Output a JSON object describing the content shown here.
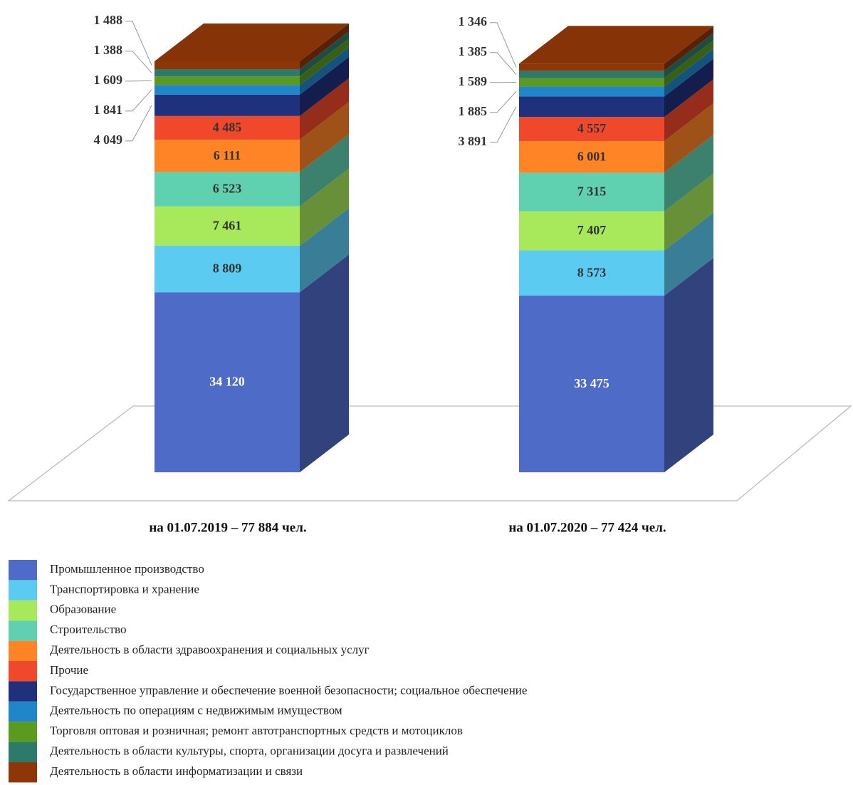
{
  "chart_data": {
    "type": "stacked-bar-3d",
    "categories": [
      "на 01.07.2019 – 77 884 чел.",
      "на 01.07.2020 – 77 424  чел."
    ],
    "series": [
      {
        "name": "Промышленное производство",
        "color": "#4f6bc8",
        "values": [
          34120,
          33475
        ],
        "value_labels": [
          "34 120",
          "33 475"
        ]
      },
      {
        "name": "Транспортировка и хранение",
        "color": "#5ccbf2",
        "values": [
          8809,
          8573
        ],
        "value_labels": [
          "8 809",
          "8 573"
        ]
      },
      {
        "name": "Образование",
        "color": "#a7e95a",
        "values": [
          7461,
          7407
        ],
        "value_labels": [
          "7 461",
          "7 407"
        ]
      },
      {
        "name": "Строительство",
        "color": "#5fd0b0",
        "values": [
          6523,
          7315
        ],
        "value_labels": [
          "6 523",
          "7 315"
        ]
      },
      {
        "name": "Деятельность в области здравоохранения и социальных услуг",
        "color": "#ff8426",
        "values": [
          6111,
          6001
        ],
        "value_labels": [
          "6 111",
          "6 001"
        ]
      },
      {
        "name": "Прочие",
        "color": "#f0482a",
        "values": [
          4485,
          4557
        ],
        "value_labels": [
          "4 485",
          "4 557"
        ]
      },
      {
        "name": "Государственное управление и обеспечение военной безопасности; социальное обеспечение",
        "color": "#1f317c",
        "values": [
          4049,
          3891
        ],
        "value_labels": [
          "4 049",
          "3 891"
        ]
      },
      {
        "name": "Деятельность по операциям с недвижимым имуществом",
        "color": "#1e86c9",
        "values": [
          1841,
          1885
        ],
        "value_labels": [
          "1 841",
          "1 885"
        ]
      },
      {
        "name": "Торговля оптовая и розничная; ремонт автотранспортных средств и мотоциклов",
        "color": "#5a9a1e",
        "values": [
          1609,
          1589
        ],
        "value_labels": [
          "1 609",
          "1 589"
        ]
      },
      {
        "name": "Деятельность в области культуры, спорта, организации досуга и развлечений",
        "color": "#2e7a6a",
        "values": [
          1388,
          1385
        ],
        "value_labels": [
          "1 388",
          "1 385"
        ]
      },
      {
        "name": "Деятельность в области информатизации и связи",
        "color": "#8e3608",
        "values": [
          1488,
          1346
        ],
        "value_labels": [
          "1 488",
          "1 346"
        ]
      }
    ]
  }
}
